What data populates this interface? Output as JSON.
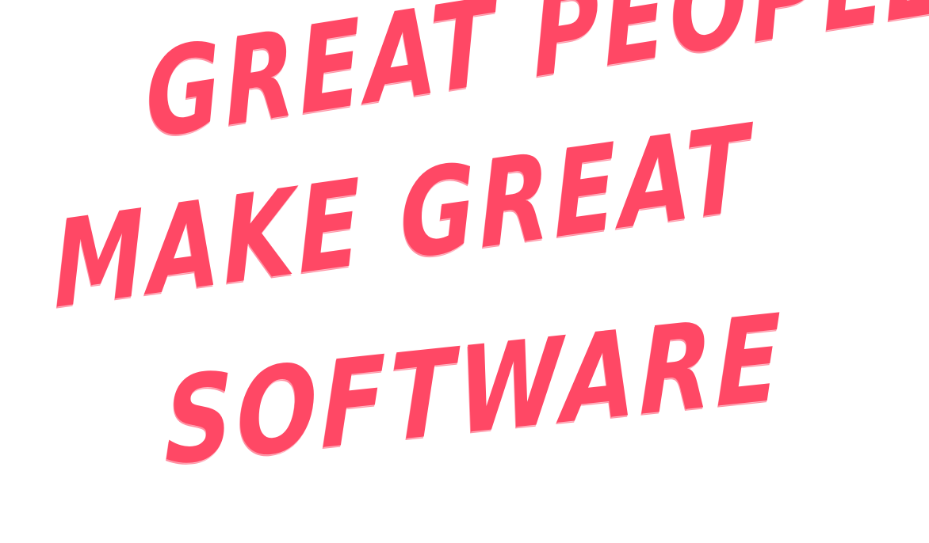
{
  "headline": {
    "lines": [
      "GREAT PEOPLE",
      "MAKE GREAT",
      "SOFTWARE"
    ]
  },
  "colors": {
    "text": "#FF4865",
    "background": "#FFFFFF"
  }
}
